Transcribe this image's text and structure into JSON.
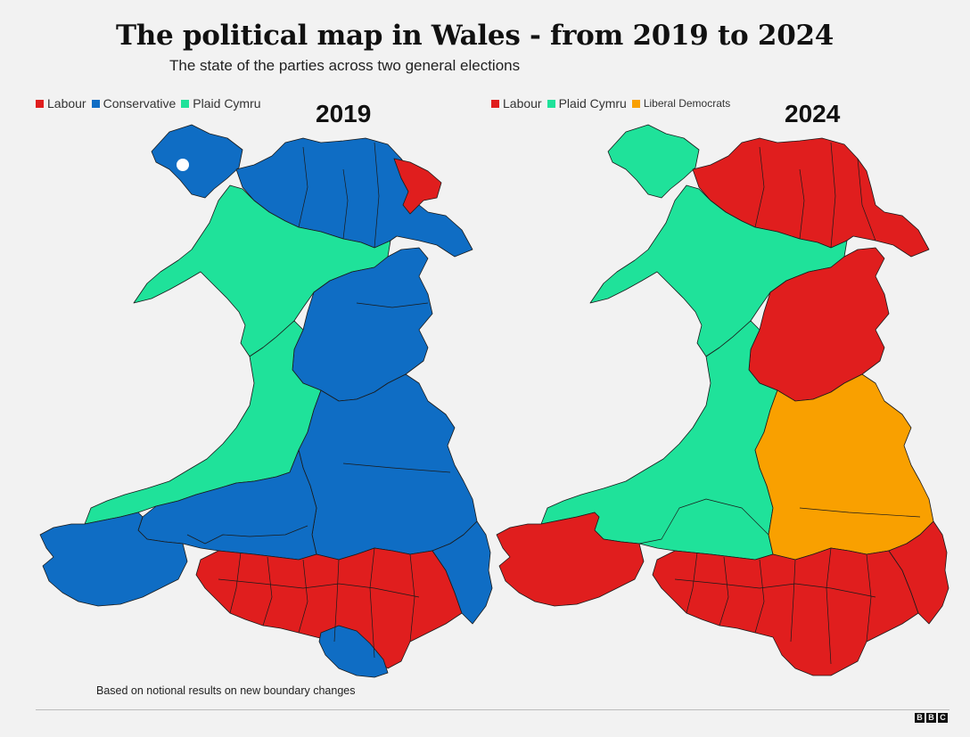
{
  "title": "The political map in Wales - from 2019 to 2024",
  "subtitle": "The state of the parties across two general elections",
  "parties": {
    "labour": {
      "name": "Labour",
      "color": "#e01e1e"
    },
    "conservative": {
      "name": "Conservative",
      "color": "#0f6dc4"
    },
    "plaid": {
      "name": "Plaid Cymru",
      "color": "#1fe29a"
    },
    "libdem": {
      "name": "Liberal Democrats",
      "color": "#f9a000"
    }
  },
  "left_map": {
    "year": "2019",
    "legend": [
      "Labour",
      "Conservative",
      "Plaid Cymru"
    ]
  },
  "right_map": {
    "year": "2024",
    "legend": [
      "Labour",
      "Plaid Cymru",
      "Liberal Democrats"
    ]
  },
  "footnote": "Based on notional results on new boundary changes",
  "brand": [
    "B",
    "B",
    "C"
  ]
}
